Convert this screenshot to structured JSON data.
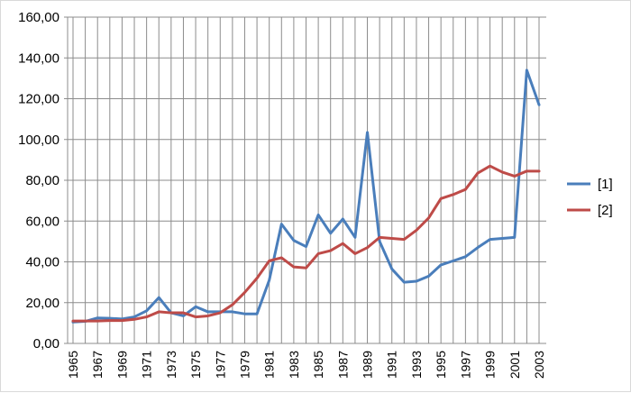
{
  "chart_data": {
    "type": "line",
    "title": "",
    "xlabel": "",
    "ylabel": "",
    "ylim": [
      0,
      160
    ],
    "yticks": [
      "0,00",
      "20,00",
      "40,00",
      "60,00",
      "80,00",
      "100,00",
      "120,00",
      "140,00",
      "160,00"
    ],
    "x": [
      1965,
      1966,
      1967,
      1968,
      1969,
      1970,
      1971,
      1972,
      1973,
      1974,
      1975,
      1976,
      1977,
      1978,
      1979,
      1980,
      1981,
      1982,
      1983,
      1984,
      1985,
      1986,
      1987,
      1988,
      1989,
      1990,
      1991,
      1992,
      1993,
      1994,
      1995,
      1996,
      1997,
      1998,
      1999,
      2000,
      2001,
      2002,
      2003
    ],
    "xtick_labels": [
      "1965",
      "1967",
      "1969",
      "1971",
      "1973",
      "1975",
      "1977",
      "1979",
      "1981",
      "1983",
      "1985",
      "1987",
      "1989",
      "1991",
      "1993",
      "1995",
      "1997",
      "1999",
      "2001",
      "2003"
    ],
    "grid": "vertical-and-horizontal",
    "legend_position": "right",
    "series": [
      {
        "name": "[1]",
        "color": "#4a7ebb",
        "values": [
          10.5,
          10.8,
          12.5,
          12.3,
          12.0,
          13.0,
          16.0,
          22.5,
          15.0,
          13.5,
          18.0,
          15.5,
          15.5,
          15.5,
          14.5,
          14.5,
          31.0,
          58.5,
          50.5,
          47.5,
          63.0,
          54.0,
          61.0,
          52.0,
          103.5,
          50.0,
          36.5,
          30.0,
          30.5,
          33.0,
          38.5,
          40.5,
          42.5,
          47.0,
          51.0,
          51.5,
          52.0,
          134.0,
          117.0
        ]
      },
      {
        "name": "[2]",
        "color": "#be4b48",
        "values": [
          11.0,
          11.0,
          11.0,
          11.2,
          11.2,
          11.8,
          13.0,
          15.5,
          15.0,
          15.0,
          13.0,
          13.5,
          15.0,
          19.0,
          25.0,
          32.0,
          40.5,
          42.0,
          37.5,
          37.0,
          44.0,
          45.5,
          49.0,
          44.0,
          47.0,
          52.0,
          51.5,
          51.0,
          55.5,
          61.5,
          71.0,
          73.0,
          75.5,
          83.5,
          87.0,
          84.0,
          82.0,
          84.5,
          84.5
        ]
      }
    ]
  }
}
